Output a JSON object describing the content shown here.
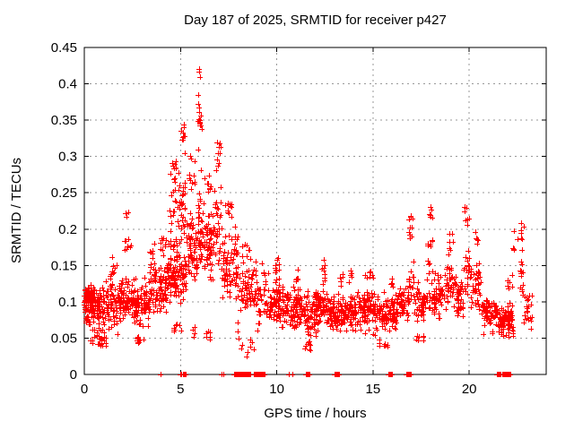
{
  "chart_data": {
    "type": "scatter",
    "title": "Day 187 of 2025, SRMTID for receiver p427",
    "xlabel": "GPS time / hours",
    "ylabel": "SRMTID / TECUs",
    "xlim": [
      0,
      24
    ],
    "ylim": [
      0,
      0.45
    ],
    "x_ticks": [
      0,
      5,
      10,
      15,
      20
    ],
    "x_tick_labels": [
      "0",
      "5",
      "10",
      "15",
      "20"
    ],
    "y_ticks": [
      0,
      0.05,
      0.1,
      0.15,
      0.2,
      0.25,
      0.3,
      0.35,
      0.4,
      0.45
    ],
    "y_tick_labels": [
      "0",
      "0.05",
      "0.1",
      "0.15",
      "0.2",
      "0.25",
      "0.3",
      "0.35",
      "0.4",
      "0.45"
    ],
    "grid": true,
    "legend": false,
    "marker": {
      "shape": "plus",
      "color": "#ff0000",
      "size": 7
    },
    "axis_color": "#000000",
    "grid_color": "#999999",
    "background": "#ffffff",
    "seed": 20250187,
    "max_point": {
      "x": 5.95,
      "y": 0.42
    },
    "point_bands": [
      {
        "x0": 0.0,
        "x1": 0.7,
        "y0": 0.055,
        "y1": 0.135,
        "n": 90
      },
      {
        "x0": 0.05,
        "x1": 0.5,
        "y0": 0.09,
        "y1": 0.125,
        "n": 40
      },
      {
        "x0": 0.3,
        "x1": 1.15,
        "y0": 0.03,
        "y1": 0.068,
        "n": 28
      },
      {
        "x0": 0.7,
        "x1": 1.8,
        "y0": 0.05,
        "y1": 0.14,
        "n": 110
      },
      {
        "x0": 1.3,
        "x1": 1.75,
        "y0": 0.125,
        "y1": 0.165,
        "n": 10
      },
      {
        "x0": 1.8,
        "x1": 2.6,
        "y0": 0.06,
        "y1": 0.15,
        "n": 85
      },
      {
        "x0": 2.05,
        "x1": 2.45,
        "y0": 0.15,
        "y1": 0.2,
        "n": 8
      },
      {
        "x0": 2.15,
        "x1": 2.35,
        "y0": 0.2,
        "y1": 0.245,
        "n": 3
      },
      {
        "x0": 2.6,
        "x1": 3.35,
        "y0": 0.05,
        "y1": 0.14,
        "n": 75
      },
      {
        "x0": 2.7,
        "x1": 3.1,
        "y0": 0.038,
        "y1": 0.06,
        "n": 10
      },
      {
        "x0": 3.35,
        "x1": 4.3,
        "y0": 0.07,
        "y1": 0.165,
        "n": 95
      },
      {
        "x0": 3.4,
        "x1": 3.65,
        "y0": 0.15,
        "y1": 0.19,
        "n": 7
      },
      {
        "x0": 3.9,
        "x1": 4.3,
        "y0": 0.15,
        "y1": 0.21,
        "n": 10
      },
      {
        "x0": 4.3,
        "x1": 5.0,
        "y0": 0.08,
        "y1": 0.2,
        "n": 90
      },
      {
        "x0": 4.45,
        "x1": 4.95,
        "y0": 0.17,
        "y1": 0.3,
        "n": 25
      },
      {
        "x0": 4.55,
        "x1": 4.8,
        "y0": 0.25,
        "y1": 0.335,
        "n": 8
      },
      {
        "x0": 4.65,
        "x1": 5.05,
        "y0": 0.05,
        "y1": 0.085,
        "n": 8
      },
      {
        "x0": 5.0,
        "x1": 5.3,
        "y0": 0.09,
        "y1": 0.17,
        "n": 30
      },
      {
        "x0": 5.0,
        "x1": 5.28,
        "y0": 0.15,
        "y1": 0.3,
        "n": 22
      },
      {
        "x0": 5.02,
        "x1": 5.22,
        "y0": 0.29,
        "y1": 0.37,
        "n": 10
      },
      {
        "x0": 5.3,
        "x1": 5.85,
        "y0": 0.1,
        "y1": 0.25,
        "n": 60
      },
      {
        "x0": 5.45,
        "x1": 5.85,
        "y0": 0.22,
        "y1": 0.32,
        "n": 12
      },
      {
        "x0": 5.55,
        "x1": 5.75,
        "y0": 0.045,
        "y1": 0.08,
        "n": 4
      },
      {
        "x0": 5.85,
        "x1": 6.15,
        "y0": 0.12,
        "y1": 0.3,
        "n": 38
      },
      {
        "x0": 5.88,
        "x1": 6.1,
        "y0": 0.3,
        "y1": 0.4,
        "n": 16
      },
      {
        "x0": 5.92,
        "x1": 6.0,
        "y0": 0.405,
        "y1": 0.422,
        "n": 2
      },
      {
        "x0": 6.15,
        "x1": 6.7,
        "y0": 0.1,
        "y1": 0.26,
        "n": 55
      },
      {
        "x0": 6.25,
        "x1": 6.6,
        "y0": 0.24,
        "y1": 0.3,
        "n": 8
      },
      {
        "x0": 6.3,
        "x1": 6.65,
        "y0": 0.035,
        "y1": 0.075,
        "n": 6
      },
      {
        "x0": 6.7,
        "x1": 7.15,
        "y0": 0.11,
        "y1": 0.28,
        "n": 32
      },
      {
        "x0": 6.82,
        "x1": 7.1,
        "y0": 0.26,
        "y1": 0.335,
        "n": 10
      },
      {
        "x0": 7.15,
        "x1": 8.0,
        "y0": 0.08,
        "y1": 0.22,
        "n": 70
      },
      {
        "x0": 7.3,
        "x1": 7.65,
        "y0": 0.2,
        "y1": 0.26,
        "n": 10
      },
      {
        "x0": 7.85,
        "x1": 8.05,
        "y0": 0.02,
        "y1": 0.19,
        "n": 10,
        "dist": "uniform"
      },
      {
        "x0": 8.0,
        "x1": 9.0,
        "y0": 0.06,
        "y1": 0.17,
        "n": 65
      },
      {
        "x0": 8.2,
        "x1": 8.6,
        "y0": 0.15,
        "y1": 0.19,
        "n": 8
      },
      {
        "x0": 8.1,
        "x1": 8.9,
        "y0": 0.02,
        "y1": 0.055,
        "n": 8
      },
      {
        "x0": 9.0,
        "x1": 9.6,
        "y0": 0.05,
        "y1": 0.15,
        "n": 32
      },
      {
        "x0": 9.2,
        "x1": 9.4,
        "y0": 0.125,
        "y1": 0.158,
        "n": 5
      },
      {
        "x0": 9.6,
        "x1": 10.4,
        "y0": 0.055,
        "y1": 0.135,
        "n": 75
      },
      {
        "x0": 9.9,
        "x1": 10.15,
        "y0": 0.12,
        "y1": 0.172,
        "n": 12
      },
      {
        "x0": 10.4,
        "x1": 11.2,
        "y0": 0.05,
        "y1": 0.13,
        "n": 85
      },
      {
        "x0": 10.9,
        "x1": 11.12,
        "y0": 0.12,
        "y1": 0.155,
        "n": 6
      },
      {
        "x0": 11.2,
        "x1": 12.2,
        "y0": 0.045,
        "y1": 0.125,
        "n": 95
      },
      {
        "x0": 11.35,
        "x1": 11.8,
        "y0": 0.028,
        "y1": 0.05,
        "n": 10
      },
      {
        "x0": 12.2,
        "x1": 12.6,
        "y0": 0.06,
        "y1": 0.125,
        "n": 40
      },
      {
        "x0": 12.35,
        "x1": 12.55,
        "y0": 0.12,
        "y1": 0.168,
        "n": 10
      },
      {
        "x0": 12.6,
        "x1": 14.0,
        "y0": 0.05,
        "y1": 0.12,
        "n": 125
      },
      {
        "x0": 13.25,
        "x1": 13.45,
        "y0": 0.115,
        "y1": 0.15,
        "n": 5
      },
      {
        "x0": 13.7,
        "x1": 13.9,
        "y0": 0.115,
        "y1": 0.155,
        "n": 5
      },
      {
        "x0": 14.0,
        "x1": 15.2,
        "y0": 0.05,
        "y1": 0.125,
        "n": 110
      },
      {
        "x0": 14.55,
        "x1": 15.0,
        "y0": 0.12,
        "y1": 0.152,
        "n": 8
      },
      {
        "x0": 15.2,
        "x1": 16.2,
        "y0": 0.05,
        "y1": 0.12,
        "n": 90
      },
      {
        "x0": 15.3,
        "x1": 15.8,
        "y0": 0.033,
        "y1": 0.052,
        "n": 8
      },
      {
        "x0": 15.9,
        "x1": 16.15,
        "y0": 0.115,
        "y1": 0.142,
        "n": 5
      },
      {
        "x0": 16.2,
        "x1": 16.85,
        "y0": 0.06,
        "y1": 0.13,
        "n": 50
      },
      {
        "x0": 16.85,
        "x1": 17.12,
        "y0": 0.09,
        "y1": 0.165,
        "n": 16
      },
      {
        "x0": 16.88,
        "x1": 17.08,
        "y0": 0.16,
        "y1": 0.245,
        "n": 10
      },
      {
        "x0": 17.12,
        "x1": 17.8,
        "y0": 0.06,
        "y1": 0.14,
        "n": 50
      },
      {
        "x0": 17.25,
        "x1": 17.65,
        "y0": 0.04,
        "y1": 0.062,
        "n": 8
      },
      {
        "x0": 17.8,
        "x1": 18.15,
        "y0": 0.12,
        "y1": 0.21,
        "n": 12
      },
      {
        "x0": 17.9,
        "x1": 18.1,
        "y0": 0.2,
        "y1": 0.25,
        "n": 6
      },
      {
        "x0": 17.8,
        "x1": 18.2,
        "y0": 0.07,
        "y1": 0.13,
        "n": 15
      },
      {
        "x0": 18.15,
        "x1": 18.7,
        "y0": 0.07,
        "y1": 0.15,
        "n": 45
      },
      {
        "x0": 18.7,
        "x1": 19.3,
        "y0": 0.08,
        "y1": 0.17,
        "n": 42
      },
      {
        "x0": 18.9,
        "x1": 19.15,
        "y0": 0.16,
        "y1": 0.2,
        "n": 6
      },
      {
        "x0": 19.3,
        "x1": 19.7,
        "y0": 0.07,
        "y1": 0.14,
        "n": 35
      },
      {
        "x0": 19.7,
        "x1": 20.05,
        "y0": 0.1,
        "y1": 0.19,
        "n": 20
      },
      {
        "x0": 19.75,
        "x1": 20.0,
        "y0": 0.19,
        "y1": 0.25,
        "n": 8
      },
      {
        "x0": 20.05,
        "x1": 20.6,
        "y0": 0.08,
        "y1": 0.17,
        "n": 40
      },
      {
        "x0": 20.3,
        "x1": 20.5,
        "y0": 0.16,
        "y1": 0.212,
        "n": 5
      },
      {
        "x0": 20.6,
        "x1": 21.5,
        "y0": 0.05,
        "y1": 0.12,
        "n": 70
      },
      {
        "x0": 21.5,
        "x1": 22.3,
        "y0": 0.04,
        "y1": 0.105,
        "n": 65
      },
      {
        "x0": 21.9,
        "x1": 22.25,
        "y0": 0.055,
        "y1": 0.105,
        "n": 30
      },
      {
        "x0": 22.0,
        "x1": 22.3,
        "y0": 0.1,
        "y1": 0.15,
        "n": 6
      },
      {
        "x0": 22.25,
        "x1": 22.55,
        "y0": 0.15,
        "y1": 0.21,
        "n": 5
      },
      {
        "x0": 22.6,
        "x1": 22.85,
        "y0": 0.09,
        "y1": 0.17,
        "n": 12
      },
      {
        "x0": 22.65,
        "x1": 22.82,
        "y0": 0.17,
        "y1": 0.235,
        "n": 8
      },
      {
        "x0": 22.85,
        "x1": 23.25,
        "y0": 0.05,
        "y1": 0.13,
        "n": 25
      }
    ],
    "zero_runs": [
      {
        "x0": 3.95,
        "x1": 4.0,
        "n": 1
      },
      {
        "x0": 5.0,
        "x1": 5.27,
        "n": 6
      },
      {
        "x0": 7.13,
        "x1": 7.2,
        "n": 2
      },
      {
        "x0": 7.78,
        "x1": 8.62,
        "n": 48
      },
      {
        "x0": 8.8,
        "x1": 9.35,
        "n": 32
      },
      {
        "x0": 10.62,
        "x1": 10.66,
        "n": 1
      },
      {
        "x0": 10.78,
        "x1": 10.82,
        "n": 1
      },
      {
        "x0": 11.5,
        "x1": 11.72,
        "n": 10
      },
      {
        "x0": 13.0,
        "x1": 13.22,
        "n": 10
      },
      {
        "x0": 15.78,
        "x1": 15.98,
        "n": 9
      },
      {
        "x0": 16.75,
        "x1": 16.95,
        "n": 9
      },
      {
        "x0": 21.42,
        "x1": 21.62,
        "n": 9
      },
      {
        "x0": 21.7,
        "x1": 21.86,
        "n": 7
      },
      {
        "x0": 21.92,
        "x1": 22.12,
        "n": 9
      }
    ]
  }
}
